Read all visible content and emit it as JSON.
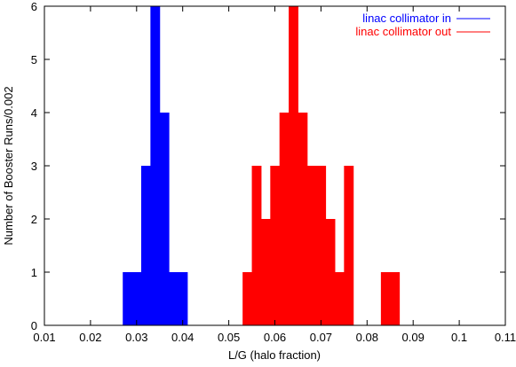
{
  "chart_data": {
    "type": "histogram",
    "xlabel": "L/G (halo fraction)",
    "ylabel": "Number of Booster Runs/0.002",
    "xlim": [
      0.01,
      0.11
    ],
    "ylim": [
      0,
      6
    ],
    "xticks": [
      0.01,
      0.02,
      0.03,
      0.04,
      0.05,
      0.06,
      0.07,
      0.08,
      0.09,
      0.1,
      0.11
    ],
    "yticks": [
      0,
      1,
      2,
      3,
      4,
      5,
      6
    ],
    "legend": "upper right",
    "series": [
      {
        "name": "linac collimator in",
        "color": "#0000ff",
        "bins": [
          0.019,
          0.021,
          0.023,
          0.025,
          0.027,
          0.029,
          0.031,
          0.033,
          0.035,
          0.037,
          0.039,
          0.041,
          0.043,
          0.045
        ],
        "values": [
          0,
          0,
          0,
          0,
          1,
          1,
          3,
          6,
          4,
          1,
          1,
          0,
          0
        ]
      },
      {
        "name": "linac collimator out",
        "color": "#ff0000",
        "bins": [
          0.041,
          0.043,
          0.045,
          0.047,
          0.049,
          0.051,
          0.053,
          0.055,
          0.057,
          0.059,
          0.061,
          0.063,
          0.065,
          0.067,
          0.069,
          0.071,
          0.073,
          0.075,
          0.077,
          0.079,
          0.081,
          0.083,
          0.085,
          0.087,
          0.089,
          0.091,
          0.093,
          0.095,
          0.097,
          0.099,
          0.101,
          0.103,
          0.105
        ],
        "values": [
          0,
          0,
          0,
          0,
          0,
          0,
          1,
          3,
          2,
          3,
          4,
          6,
          4,
          3,
          3,
          2,
          1,
          3,
          0,
          0,
          0,
          1,
          1,
          0,
          0,
          0,
          0,
          0,
          0,
          0,
          0,
          0
        ]
      }
    ]
  }
}
